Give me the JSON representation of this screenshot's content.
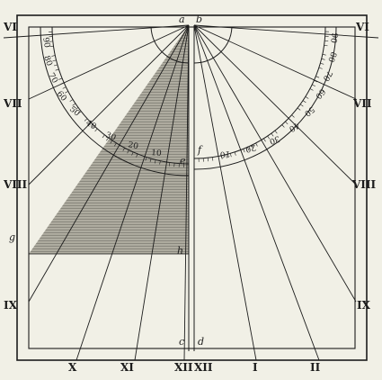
{
  "diagram": {
    "point_labels": {
      "a": "a",
      "b": "b",
      "c": "c",
      "d": "d",
      "e": "e",
      "f": "f",
      "g": "g",
      "h": "h"
    },
    "left_hours": [
      "VI",
      "VII",
      "VIII",
      "IX",
      "X",
      "XI",
      "XII"
    ],
    "right_hours": [
      "VI",
      "VII",
      "VIII",
      "IX",
      "II",
      "I",
      "XII"
    ],
    "left_arc_degrees": [
      "90",
      "80",
      "70",
      "60",
      "50",
      "40",
      "30",
      "20",
      "10"
    ],
    "right_arc_degrees": [
      "90",
      "80",
      "70",
      "60",
      "50",
      "40",
      "30",
      "20",
      "10"
    ],
    "colors": {
      "ink": "#1c1c1c",
      "paper": "#f1f0e6",
      "shade": "#8c8a7e"
    }
  }
}
